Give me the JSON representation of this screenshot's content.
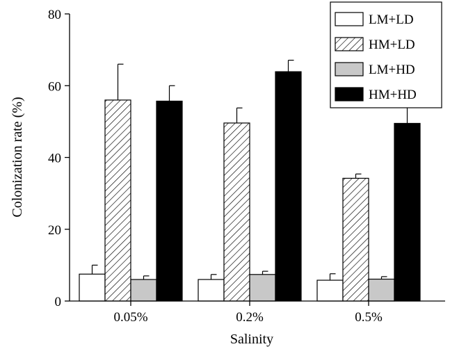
{
  "chart_data": {
    "type": "bar",
    "xlabel": "Salinity",
    "ylabel": "Colonization rate (%)",
    "ylim": [
      0,
      80
    ],
    "yticks": [
      0,
      20,
      40,
      60,
      80
    ],
    "categories": [
      "0.05%",
      "0.2%",
      "0.5%"
    ],
    "legend_position": "top-right",
    "series": [
      {
        "name": "LM+LD",
        "values": [
          7.5,
          6.0,
          5.8
        ],
        "errors": [
          2.5,
          1.4,
          1.8
        ],
        "fill": "#ffffff",
        "pattern": "none"
      },
      {
        "name": "HM+LD",
        "values": [
          56.0,
          49.6,
          34.2
        ],
        "errors": [
          10.0,
          4.2,
          1.2
        ],
        "fill": "#ffffff",
        "pattern": "diagonal-hatch"
      },
      {
        "name": "LM+HD",
        "values": [
          6.0,
          7.4,
          6.1
        ],
        "errors": [
          1.0,
          0.9,
          0.7
        ],
        "fill": "#c8c8c8",
        "pattern": "none"
      },
      {
        "name": "HM+HD",
        "values": [
          55.7,
          63.9,
          49.5
        ],
        "errors": [
          4.3,
          3.2,
          6.8
        ],
        "fill": "#000000",
        "pattern": "none"
      }
    ]
  }
}
